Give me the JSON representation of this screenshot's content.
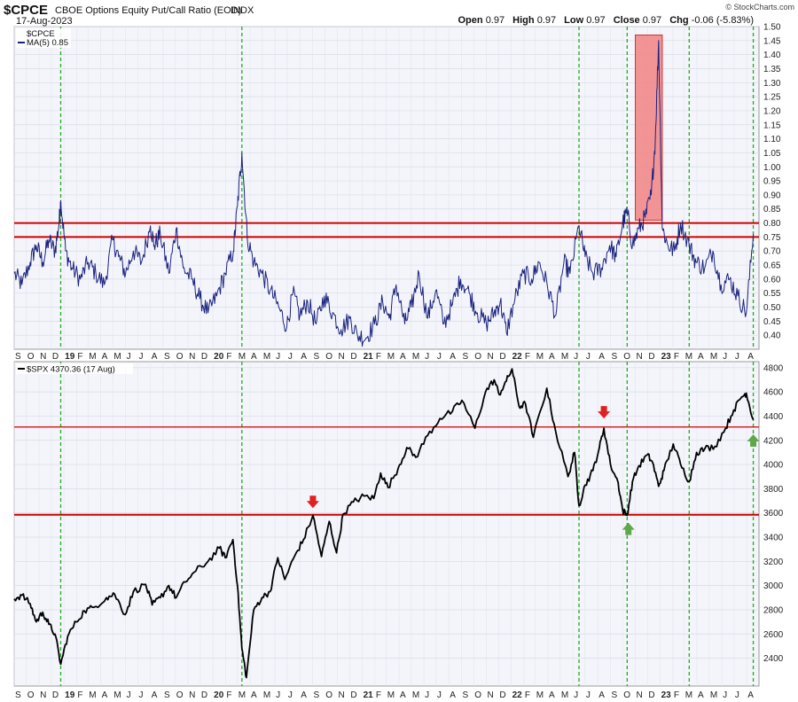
{
  "header": {
    "symbol": "$CPCE",
    "name": "CBOE Options Equity Put/Call Ratio (EOD)",
    "exchange": "INDX",
    "date": "17-Aug-2023",
    "open_label": "Open",
    "open": "0.97",
    "high_label": "High",
    "high": "0.97",
    "low_label": "Low",
    "low": "0.97",
    "close_label": "Close",
    "close": "0.97",
    "chg_label": "Chg",
    "chg": "-0.06 (-5.83%)",
    "watermark": "© StockCharts.com"
  },
  "colors": {
    "cpce_line": "#1a237e",
    "spx_line": "#000000",
    "hline": "#cc0000",
    "vline": "#22aa22",
    "highlight": "#f28a8a",
    "red_arrow": "#e02020",
    "green_arrow": "#5fa84a"
  },
  "x_axis": {
    "month_labels": [
      "S",
      "O",
      "N",
      "D",
      "19",
      "F",
      "M",
      "A",
      "M",
      "J",
      "J",
      "A",
      "S",
      "O",
      "N",
      "D",
      "20",
      "F",
      "M",
      "A",
      "M",
      "J",
      "J",
      "A",
      "S",
      "O",
      "N",
      "D",
      "21",
      "F",
      "M",
      "A",
      "M",
      "J",
      "J",
      "A",
      "S",
      "O",
      "N",
      "D",
      "22",
      "F",
      "M",
      "A",
      "M",
      "J",
      "J",
      "A",
      "S",
      "O",
      "N",
      "D",
      "23",
      "F",
      "M",
      "A",
      "M",
      "J",
      "J",
      "A"
    ]
  },
  "chart_data": [
    {
      "type": "line",
      "panel": "top",
      "legend": [
        "$CPCE",
        "MA(5) 0.85"
      ],
      "x_range": [
        "2018-09-01",
        "2023-08-31"
      ],
      "ylim": [
        0.35,
        1.5
      ],
      "y_ticks": [
        0.4,
        0.45,
        0.5,
        0.55,
        0.6,
        0.65,
        0.7,
        0.75,
        0.8,
        0.85,
        0.9,
        0.95,
        1.0,
        1.05,
        1.1,
        1.15,
        1.2,
        1.25,
        1.3,
        1.35,
        1.4,
        1.45,
        1.5
      ],
      "y_tick_labels": [
        "0.40",
        "0.45",
        "0.50",
        "0.55",
        "0.60",
        "0.65",
        "0.70",
        "0.75",
        "0.80",
        "0.85",
        "0.90",
        "0.95",
        "1.00",
        "1.05",
        "1.10",
        "1.15",
        "1.20",
        "1.25",
        "1.30",
        "1.35",
        "1.40",
        "1.45",
        "1.50"
      ],
      "hlines": [
        0.8,
        0.75
      ],
      "vlines": [
        "2018-12-24",
        "2020-03-12",
        "2022-06-16",
        "2022-10-12",
        "2023-03-13",
        "2023-08-17"
      ],
      "highlight_box": {
        "x": [
          "2022-11-01",
          "2023-01-06"
        ],
        "y": [
          0.81,
          1.47
        ]
      },
      "series": [
        {
          "name": "MA(5)",
          "x": [
            "2018-09-01",
            "2018-09-20",
            "2018-10-10",
            "2018-10-25",
            "2018-11-10",
            "2018-11-25",
            "2018-12-10",
            "2018-12-20",
            "2018-12-24",
            "2019-01-05",
            "2019-01-20",
            "2019-02-10",
            "2019-03-01",
            "2019-03-20",
            "2019-04-10",
            "2019-04-30",
            "2019-05-15",
            "2019-06-01",
            "2019-06-20",
            "2019-07-10",
            "2019-08-01",
            "2019-08-10",
            "2019-08-25",
            "2019-09-15",
            "2019-10-03",
            "2019-10-20",
            "2019-11-10",
            "2019-11-30",
            "2019-12-20",
            "2020-01-10",
            "2020-01-31",
            "2020-02-20",
            "2020-03-01",
            "2020-03-12",
            "2020-03-25",
            "2020-04-10",
            "2020-04-30",
            "2020-05-20",
            "2020-06-10",
            "2020-06-30",
            "2020-07-15",
            "2020-08-01",
            "2020-08-20",
            "2020-09-10",
            "2020-09-30",
            "2020-10-20",
            "2020-11-10",
            "2020-12-01",
            "2020-12-20",
            "2021-01-10",
            "2021-01-31",
            "2021-02-20",
            "2021-03-08",
            "2021-03-25",
            "2021-04-15",
            "2021-05-01",
            "2021-05-20",
            "2021-06-10",
            "2021-06-30",
            "2021-07-20",
            "2021-08-10",
            "2021-08-30",
            "2021-09-20",
            "2021-10-10",
            "2021-11-01",
            "2021-11-20",
            "2021-12-05",
            "2021-12-20",
            "2022-01-10",
            "2022-01-31",
            "2022-02-20",
            "2022-03-10",
            "2022-03-30",
            "2022-04-20",
            "2022-05-10",
            "2022-05-25",
            "2022-06-16",
            "2022-07-01",
            "2022-07-20",
            "2022-08-10",
            "2022-08-30",
            "2022-09-15",
            "2022-10-01",
            "2022-10-12",
            "2022-10-25",
            "2022-11-10",
            "2022-11-25",
            "2022-12-10",
            "2022-12-20",
            "2022-12-28",
            "2023-01-06",
            "2023-01-20",
            "2023-02-05",
            "2023-02-20",
            "2023-03-13",
            "2023-03-30",
            "2023-04-20",
            "2023-05-10",
            "2023-05-30",
            "2023-06-20",
            "2023-07-10",
            "2023-07-31",
            "2023-08-17"
          ],
          "values": [
            0.62,
            0.58,
            0.66,
            0.72,
            0.66,
            0.74,
            0.7,
            0.8,
            0.88,
            0.7,
            0.64,
            0.6,
            0.66,
            0.62,
            0.58,
            0.74,
            0.68,
            0.62,
            0.7,
            0.66,
            0.79,
            0.72,
            0.76,
            0.62,
            0.78,
            0.64,
            0.6,
            0.53,
            0.48,
            0.54,
            0.62,
            0.7,
            0.86,
            1.05,
            0.75,
            0.66,
            0.62,
            0.56,
            0.5,
            0.43,
            0.55,
            0.47,
            0.52,
            0.44,
            0.54,
            0.48,
            0.42,
            0.46,
            0.4,
            0.39,
            0.44,
            0.52,
            0.46,
            0.58,
            0.44,
            0.5,
            0.62,
            0.46,
            0.56,
            0.44,
            0.51,
            0.6,
            0.55,
            0.48,
            0.44,
            0.48,
            0.52,
            0.41,
            0.53,
            0.62,
            0.6,
            0.66,
            0.58,
            0.47,
            0.66,
            0.62,
            0.79,
            0.68,
            0.62,
            0.64,
            0.72,
            0.68,
            0.8,
            0.84,
            0.72,
            0.78,
            0.82,
            0.9,
            1.1,
            1.45,
            0.78,
            0.72,
            0.7,
            0.8,
            0.72,
            0.66,
            0.64,
            0.7,
            0.58,
            0.6,
            0.54,
            0.48,
            0.76
          ]
        }
      ]
    },
    {
      "type": "line",
      "panel": "bottom",
      "legend": [
        "$SPX 4370.36 (17 Aug)"
      ],
      "x_range": [
        "2018-09-01",
        "2023-08-31"
      ],
      "ylim": [
        2170,
        4850
      ],
      "y_ticks": [
        2400,
        2600,
        2800,
        3000,
        3200,
        3400,
        3600,
        3800,
        4000,
        4200,
        4400,
        4600,
        4800
      ],
      "y_tick_labels": [
        "2400",
        "2600",
        "2800",
        "3000",
        "3200",
        "3400",
        "3600",
        "3800",
        "4000",
        "4200",
        "4400",
        "4600",
        "4800"
      ],
      "hlines": [
        4310,
        3585
      ],
      "vlines": [
        "2018-12-24",
        "2020-03-12",
        "2022-06-16",
        "2022-10-12",
        "2023-03-13",
        "2023-08-17"
      ],
      "markers": [
        {
          "kind": "down",
          "color": "red",
          "x": "2020-09-02",
          "y": 3640
        },
        {
          "kind": "down",
          "color": "red",
          "x": "2022-08-16",
          "y": 4380
        },
        {
          "kind": "up",
          "color": "green",
          "x": "2022-10-15",
          "y": 3520
        },
        {
          "kind": "up",
          "color": "green",
          "x": "2023-08-17",
          "y": 4250
        }
      ],
      "series": [
        {
          "name": "$SPX",
          "x": [
            "2018-09-01",
            "2018-09-20",
            "2018-10-10",
            "2018-10-25",
            "2018-11-10",
            "2018-11-25",
            "2018-12-10",
            "2018-12-24",
            "2019-01-10",
            "2019-01-31",
            "2019-02-20",
            "2019-03-15",
            "2019-04-15",
            "2019-05-05",
            "2019-05-31",
            "2019-06-20",
            "2019-07-20",
            "2019-08-05",
            "2019-08-25",
            "2019-09-15",
            "2019-10-03",
            "2019-10-25",
            "2019-11-20",
            "2019-12-20",
            "2020-01-17",
            "2020-01-31",
            "2020-02-19",
            "2020-03-01",
            "2020-03-12",
            "2020-03-23",
            "2020-04-10",
            "2020-04-30",
            "2020-05-20",
            "2020-06-08",
            "2020-06-25",
            "2020-07-20",
            "2020-08-10",
            "2020-09-02",
            "2020-09-23",
            "2020-10-12",
            "2020-10-30",
            "2020-11-15",
            "2020-12-10",
            "2021-01-05",
            "2021-01-29",
            "2021-02-15",
            "2021-03-05",
            "2021-03-30",
            "2021-04-20",
            "2021-05-12",
            "2021-06-10",
            "2021-07-10",
            "2021-08-10",
            "2021-09-02",
            "2021-10-04",
            "2021-10-30",
            "2021-11-20",
            "2021-12-02",
            "2021-12-20",
            "2022-01-03",
            "2022-01-20",
            "2022-02-05",
            "2022-02-24",
            "2022-03-29",
            "2022-04-20",
            "2022-05-20",
            "2022-06-05",
            "2022-06-16",
            "2022-07-01",
            "2022-07-20",
            "2022-08-05",
            "2022-08-16",
            "2022-09-01",
            "2022-09-20",
            "2022-10-01",
            "2022-10-12",
            "2022-10-25",
            "2022-11-10",
            "2022-11-30",
            "2022-12-13",
            "2022-12-28",
            "2023-01-10",
            "2023-02-02",
            "2023-02-20",
            "2023-03-13",
            "2023-03-31",
            "2023-04-20",
            "2023-05-15",
            "2023-06-10",
            "2023-06-30",
            "2023-07-20",
            "2023-07-31",
            "2023-08-17"
          ],
          "values": [
            2890,
            2920,
            2850,
            2700,
            2780,
            2680,
            2600,
            2350,
            2580,
            2700,
            2790,
            2820,
            2900,
            2930,
            2760,
            2950,
            3010,
            2840,
            2900,
            3000,
            2900,
            3030,
            3120,
            3200,
            3310,
            3230,
            3380,
            3000,
            2480,
            2240,
            2800,
            2900,
            2950,
            3230,
            3050,
            3250,
            3380,
            3580,
            3240,
            3530,
            3270,
            3590,
            3690,
            3740,
            3720,
            3930,
            3810,
            3970,
            4140,
            4060,
            4240,
            4380,
            4440,
            4530,
            4300,
            4600,
            4700,
            4580,
            4690,
            4790,
            4480,
            4500,
            4225,
            4630,
            4270,
            3900,
            4100,
            3660,
            3830,
            3950,
            4140,
            4300,
            4000,
            3850,
            3620,
            3580,
            3860,
            3990,
            4080,
            4020,
            3820,
            3950,
            4170,
            4000,
            3860,
            4100,
            4130,
            4150,
            4300,
            4450,
            4560,
            4590,
            4370
          ]
        }
      ]
    }
  ]
}
